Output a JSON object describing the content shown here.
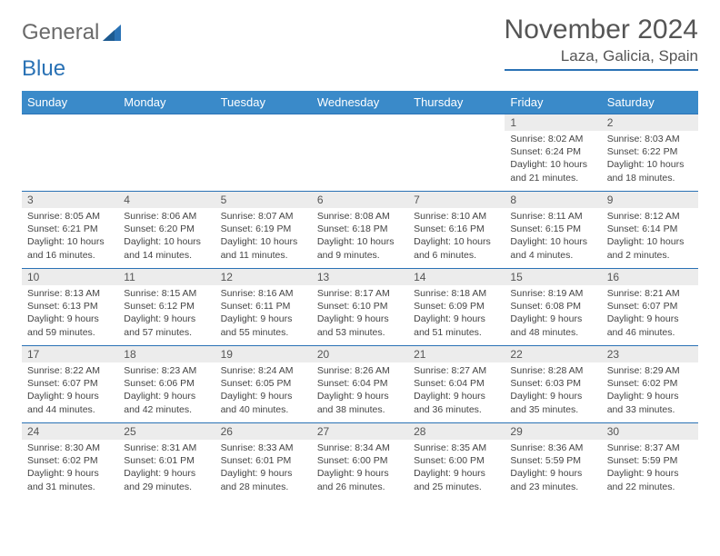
{
  "logo": {
    "text1": "General",
    "text2": "Blue"
  },
  "title": "November 2024",
  "location": "Laza, Galicia, Spain",
  "colors": {
    "header_bg": "#3a8ac9",
    "border": "#2a72b5",
    "daynum_bg": "#ececec"
  },
  "weekdays": [
    "Sunday",
    "Monday",
    "Tuesday",
    "Wednesday",
    "Thursday",
    "Friday",
    "Saturday"
  ],
  "weeks": [
    [
      null,
      null,
      null,
      null,
      null,
      {
        "n": "1",
        "sr": "8:02 AM",
        "ss": "6:24 PM",
        "dl": "10 hours and 21 minutes."
      },
      {
        "n": "2",
        "sr": "8:03 AM",
        "ss": "6:22 PM",
        "dl": "10 hours and 18 minutes."
      }
    ],
    [
      {
        "n": "3",
        "sr": "8:05 AM",
        "ss": "6:21 PM",
        "dl": "10 hours and 16 minutes."
      },
      {
        "n": "4",
        "sr": "8:06 AM",
        "ss": "6:20 PM",
        "dl": "10 hours and 14 minutes."
      },
      {
        "n": "5",
        "sr": "8:07 AM",
        "ss": "6:19 PM",
        "dl": "10 hours and 11 minutes."
      },
      {
        "n": "6",
        "sr": "8:08 AM",
        "ss": "6:18 PM",
        "dl": "10 hours and 9 minutes."
      },
      {
        "n": "7",
        "sr": "8:10 AM",
        "ss": "6:16 PM",
        "dl": "10 hours and 6 minutes."
      },
      {
        "n": "8",
        "sr": "8:11 AM",
        "ss": "6:15 PM",
        "dl": "10 hours and 4 minutes."
      },
      {
        "n": "9",
        "sr": "8:12 AM",
        "ss": "6:14 PM",
        "dl": "10 hours and 2 minutes."
      }
    ],
    [
      {
        "n": "10",
        "sr": "8:13 AM",
        "ss": "6:13 PM",
        "dl": "9 hours and 59 minutes."
      },
      {
        "n": "11",
        "sr": "8:15 AM",
        "ss": "6:12 PM",
        "dl": "9 hours and 57 minutes."
      },
      {
        "n": "12",
        "sr": "8:16 AM",
        "ss": "6:11 PM",
        "dl": "9 hours and 55 minutes."
      },
      {
        "n": "13",
        "sr": "8:17 AM",
        "ss": "6:10 PM",
        "dl": "9 hours and 53 minutes."
      },
      {
        "n": "14",
        "sr": "8:18 AM",
        "ss": "6:09 PM",
        "dl": "9 hours and 51 minutes."
      },
      {
        "n": "15",
        "sr": "8:19 AM",
        "ss": "6:08 PM",
        "dl": "9 hours and 48 minutes."
      },
      {
        "n": "16",
        "sr": "8:21 AM",
        "ss": "6:07 PM",
        "dl": "9 hours and 46 minutes."
      }
    ],
    [
      {
        "n": "17",
        "sr": "8:22 AM",
        "ss": "6:07 PM",
        "dl": "9 hours and 44 minutes."
      },
      {
        "n": "18",
        "sr": "8:23 AM",
        "ss": "6:06 PM",
        "dl": "9 hours and 42 minutes."
      },
      {
        "n": "19",
        "sr": "8:24 AM",
        "ss": "6:05 PM",
        "dl": "9 hours and 40 minutes."
      },
      {
        "n": "20",
        "sr": "8:26 AM",
        "ss": "6:04 PM",
        "dl": "9 hours and 38 minutes."
      },
      {
        "n": "21",
        "sr": "8:27 AM",
        "ss": "6:04 PM",
        "dl": "9 hours and 36 minutes."
      },
      {
        "n": "22",
        "sr": "8:28 AM",
        "ss": "6:03 PM",
        "dl": "9 hours and 35 minutes."
      },
      {
        "n": "23",
        "sr": "8:29 AM",
        "ss": "6:02 PM",
        "dl": "9 hours and 33 minutes."
      }
    ],
    [
      {
        "n": "24",
        "sr": "8:30 AM",
        "ss": "6:02 PM",
        "dl": "9 hours and 31 minutes."
      },
      {
        "n": "25",
        "sr": "8:31 AM",
        "ss": "6:01 PM",
        "dl": "9 hours and 29 minutes."
      },
      {
        "n": "26",
        "sr": "8:33 AM",
        "ss": "6:01 PM",
        "dl": "9 hours and 28 minutes."
      },
      {
        "n": "27",
        "sr": "8:34 AM",
        "ss": "6:00 PM",
        "dl": "9 hours and 26 minutes."
      },
      {
        "n": "28",
        "sr": "8:35 AM",
        "ss": "6:00 PM",
        "dl": "9 hours and 25 minutes."
      },
      {
        "n": "29",
        "sr": "8:36 AM",
        "ss": "5:59 PM",
        "dl": "9 hours and 23 minutes."
      },
      {
        "n": "30",
        "sr": "8:37 AM",
        "ss": "5:59 PM",
        "dl": "9 hours and 22 minutes."
      }
    ]
  ],
  "labels": {
    "sunrise": "Sunrise: ",
    "sunset": "Sunset: ",
    "daylight": "Daylight: "
  }
}
